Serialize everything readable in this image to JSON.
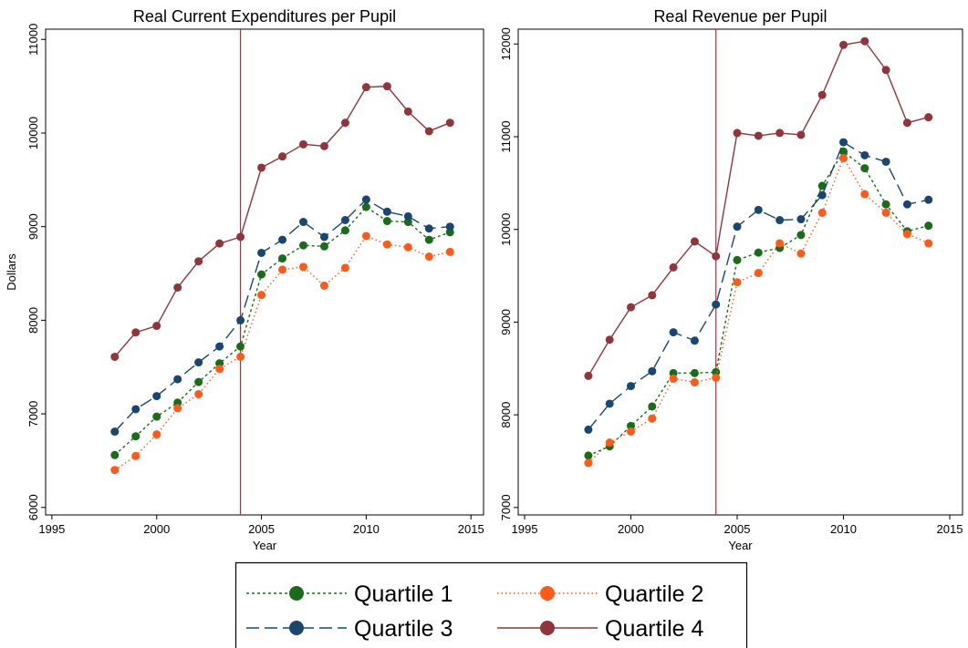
{
  "chart_data": [
    {
      "type": "line",
      "title": "Real Current Expenditures per Pupil",
      "x_label": "Year",
      "y_label": "Dollars",
      "x": [
        1998,
        1999,
        2000,
        2001,
        2002,
        2003,
        2004,
        2005,
        2006,
        2007,
        2008,
        2009,
        2010,
        2011,
        2012,
        2013,
        2014
      ],
      "xlim": [
        1994.7,
        2015.6
      ],
      "xticks": [
        1995,
        2000,
        2005,
        2010,
        2015
      ],
      "ylim": [
        5920,
        11110
      ],
      "yticks": [
        6000,
        7000,
        8000,
        9000,
        10000,
        11000
      ],
      "vline": 2004,
      "vline_color": "#c0283c",
      "series": [
        {
          "name": "Quartile 1",
          "color": "#1a6b1a",
          "linestyle": "dashdot",
          "values": [
            6560,
            6760,
            6970,
            7120,
            7340,
            7540,
            7720,
            8490,
            8660,
            8800,
            8790,
            8960,
            9210,
            9060,
            9050,
            8860,
            8940
          ]
        },
        {
          "name": "Quartile 2",
          "color": "#ff5a1a",
          "linestyle": "dotted",
          "values": [
            6400,
            6550,
            6780,
            7060,
            7210,
            7480,
            7610,
            8270,
            8540,
            8570,
            8370,
            8560,
            8900,
            8810,
            8780,
            8680,
            8730
          ]
        },
        {
          "name": "Quartile 3",
          "color": "#1a476f",
          "linestyle": "dashed",
          "values": [
            6810,
            7050,
            7190,
            7370,
            7550,
            7720,
            8000,
            8720,
            8860,
            9050,
            8890,
            9070,
            9290,
            9160,
            9110,
            8980,
            9000
          ]
        },
        {
          "name": "Quartile 4",
          "color": "#90353b",
          "linestyle": "solid",
          "values": [
            7610,
            7870,
            7940,
            8350,
            8630,
            8820,
            8890,
            9630,
            9750,
            9880,
            9860,
            10110,
            10490,
            10500,
            10230,
            10020,
            10110
          ]
        }
      ]
    },
    {
      "type": "line",
      "title": "Real Revenue per Pupil",
      "x_label": "Year",
      "x": [
        1998,
        1999,
        2000,
        2001,
        2002,
        2003,
        2004,
        2005,
        2006,
        2007,
        2008,
        2009,
        2010,
        2011,
        2012,
        2013,
        2014
      ],
      "xlim": [
        1994.7,
        2015.6
      ],
      "xticks": [
        1995,
        2000,
        2005,
        2010,
        2015
      ],
      "ylim": [
        6920,
        12160
      ],
      "yticks": [
        7000,
        8000,
        9000,
        10000,
        11000,
        12000
      ],
      "vline": 2004,
      "vline_color": "#c0283c",
      "series": [
        {
          "name": "Quartile 1",
          "color": "#1a6b1a",
          "linestyle": "dashdot",
          "values": [
            7560,
            7660,
            7880,
            8090,
            8450,
            8450,
            8460,
            9670,
            9750,
            9800,
            9940,
            10470,
            10840,
            10660,
            10270,
            9980,
            10040
          ]
        },
        {
          "name": "Quartile 2",
          "color": "#ff5a1a",
          "linestyle": "dotted",
          "values": [
            7480,
            7700,
            7820,
            7960,
            8390,
            8350,
            8400,
            9430,
            9530,
            9850,
            9740,
            10180,
            10770,
            10380,
            10180,
            9950,
            9850
          ]
        },
        {
          "name": "Quartile 3",
          "color": "#1a476f",
          "linestyle": "dashed",
          "values": [
            7840,
            8120,
            8310,
            8470,
            8890,
            8800,
            9190,
            10030,
            10210,
            10100,
            10110,
            10370,
            10940,
            10800,
            10730,
            10270,
            10320
          ]
        },
        {
          "name": "Quartile 4",
          "color": "#90353b",
          "linestyle": "solid",
          "values": [
            8420,
            8810,
            9160,
            9290,
            9590,
            9870,
            9710,
            11040,
            11010,
            11040,
            11020,
            11450,
            11990,
            12030,
            11720,
            11150,
            11210
          ]
        }
      ]
    }
  ]
}
